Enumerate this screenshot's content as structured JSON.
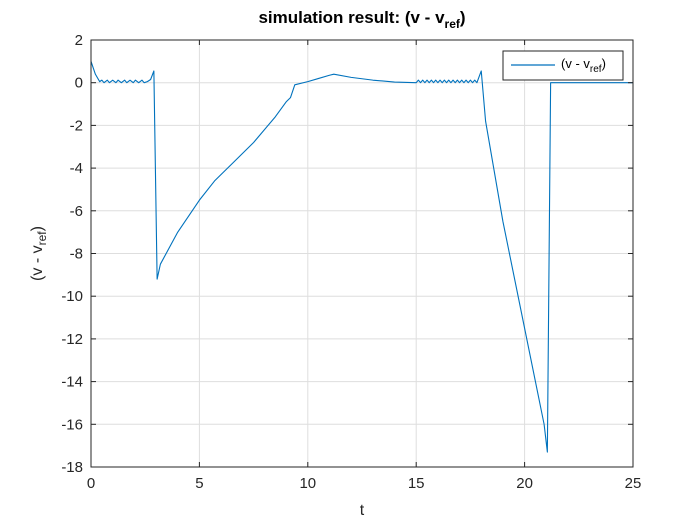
{
  "title": {
    "prefix": "simulation result: (v - v",
    "subscript": "ref",
    "suffix": ")"
  },
  "chart_data": {
    "type": "line",
    "title": "simulation result: (v - v_ref)",
    "xlabel": "t",
    "ylabel": {
      "prefix": "(v - v",
      "subscript": "ref",
      "suffix": ")"
    },
    "xlim": [
      0,
      25
    ],
    "ylim": [
      -18,
      2
    ],
    "xticks": [
      0,
      5,
      10,
      15,
      20,
      25
    ],
    "yticks": [
      2,
      0,
      -2,
      -4,
      -6,
      -8,
      -10,
      -12,
      -14,
      -16,
      -18
    ],
    "grid": true,
    "legend": {
      "position": "top-right",
      "prefix": "(v - v",
      "subscript": "ref",
      "suffix": ")"
    },
    "series": [
      {
        "name": "(v - v_ref)",
        "color": "#0072BD",
        "x": [
          0,
          0.2,
          0.4,
          0.5,
          0.6,
          0.75,
          0.85,
          1.0,
          1.15,
          1.25,
          1.4,
          1.55,
          1.65,
          1.8,
          1.95,
          2.05,
          2.2,
          2.35,
          2.45,
          2.6,
          2.75,
          2.9,
          3.05,
          3.2,
          4.0,
          5.0,
          5.7,
          6.5,
          7.5,
          8.5,
          9.0,
          9.2,
          9.4,
          10.0,
          10.5,
          11.0,
          11.2,
          12.0,
          13.0,
          14.0,
          15.0,
          15.1,
          15.2,
          15.3,
          15.4,
          15.5,
          15.6,
          15.7,
          15.8,
          15.9,
          16.0,
          16.1,
          16.2,
          16.3,
          16.4,
          16.5,
          16.6,
          16.7,
          16.8,
          16.9,
          17.0,
          17.1,
          17.2,
          17.3,
          17.4,
          17.5,
          17.6,
          17.7,
          17.8,
          18.0,
          18.2,
          19.0,
          20.0,
          20.5,
          20.9,
          21.05,
          21.2,
          22.0,
          25.0
        ],
        "y": [
          1.0,
          0.4,
          0.05,
          0.12,
          0.0,
          0.12,
          0.0,
          0.12,
          0.0,
          0.12,
          0.0,
          0.12,
          0.0,
          0.12,
          0.0,
          0.12,
          0.0,
          0.12,
          0.0,
          0.05,
          0.15,
          0.55,
          -9.2,
          -8.5,
          -7.0,
          -5.5,
          -4.6,
          -3.8,
          -2.8,
          -1.6,
          -0.9,
          -0.7,
          -0.1,
          0.05,
          0.2,
          0.35,
          0.4,
          0.25,
          0.12,
          0.03,
          0.0,
          0.12,
          0.0,
          0.12,
          0.0,
          0.12,
          0.0,
          0.12,
          0.0,
          0.12,
          0.0,
          0.12,
          0.0,
          0.12,
          0.0,
          0.12,
          0.0,
          0.12,
          0.0,
          0.12,
          0.0,
          0.12,
          0.0,
          0.12,
          0.0,
          0.12,
          0.0,
          0.12,
          0.0,
          0.55,
          -1.8,
          -6.5,
          -11.5,
          -14.0,
          -16.0,
          -17.3,
          0.0,
          0.0,
          0.0
        ]
      }
    ]
  }
}
